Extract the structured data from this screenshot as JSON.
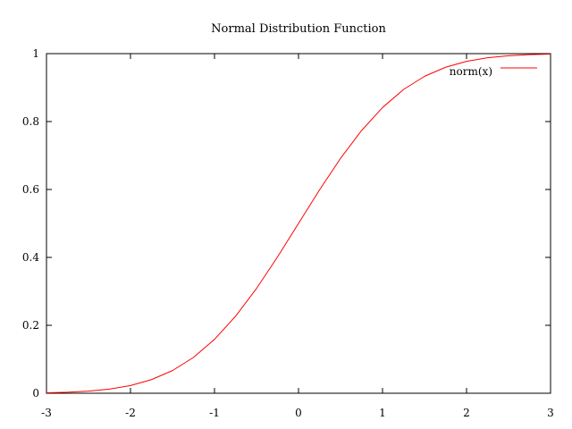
{
  "chart_data": {
    "type": "line",
    "title": "Normal Distribution Function",
    "xlabel": "",
    "ylabel": "",
    "xlim": [
      -3,
      3
    ],
    "ylim": [
      0,
      1
    ],
    "x_ticks": [
      -3,
      -2,
      -1,
      0,
      1,
      2,
      3
    ],
    "x_tick_labels": [
      "-3",
      "-2",
      "-1",
      "0",
      "1",
      "2",
      "3"
    ],
    "y_ticks": [
      0,
      0.2,
      0.4,
      0.6,
      0.8,
      1
    ],
    "y_tick_labels": [
      "0",
      "0.2",
      "0.4",
      "0.6",
      "0.8",
      "1"
    ],
    "grid": false,
    "legend_position": "top-right",
    "series": [
      {
        "name": "norm(x)",
        "color": "#ff0000",
        "x": [
          -3.0,
          -2.75,
          -2.5,
          -2.25,
          -2.0,
          -1.75,
          -1.5,
          -1.25,
          -1.0,
          -0.75,
          -0.5,
          -0.25,
          0.0,
          0.25,
          0.5,
          0.75,
          1.0,
          1.25,
          1.5,
          1.75,
          2.0,
          2.25,
          2.5,
          2.75,
          3.0
        ],
        "y": [
          0.0013,
          0.003,
          0.0062,
          0.0122,
          0.0228,
          0.0401,
          0.0668,
          0.1056,
          0.1587,
          0.2266,
          0.3085,
          0.4013,
          0.5,
          0.5987,
          0.6915,
          0.7734,
          0.8413,
          0.8944,
          0.9332,
          0.9599,
          0.9772,
          0.9878,
          0.9938,
          0.997,
          0.9987
        ]
      }
    ]
  }
}
